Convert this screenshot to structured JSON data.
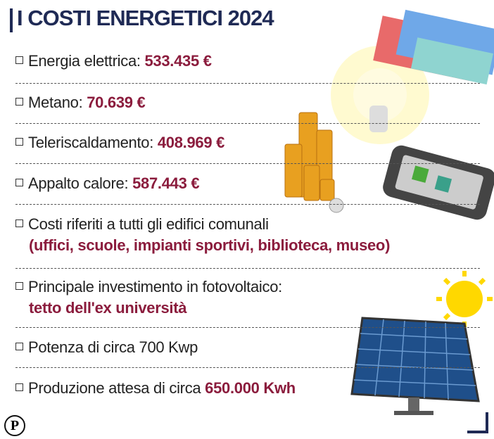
{
  "title": "I COSTI ENERGETICI 2024",
  "items": [
    {
      "text": "Energia elettrica:",
      "highlight": "533.435 €"
    },
    {
      "text": "Metano:",
      "highlight": "70.639 €"
    },
    {
      "text": "Teleriscaldamento:",
      "highlight": "408.969 €"
    },
    {
      "text": "Appalto calore:",
      "highlight": "587.443 €"
    },
    {
      "text": "Costi riferiti a tutti gli edifici comunali",
      "highlight": "(uffici, scuole, impianti sportivi, biblioteca, museo)"
    },
    {
      "text": "Principale investimento in fotovoltaico:",
      "highlight": "tetto dell'ex università"
    },
    {
      "text": "Potenza di circa 700 Kwp"
    },
    {
      "text": "Produzione attesa di circa",
      "highlight": "650.000 Kwh"
    }
  ],
  "logo": "P"
}
